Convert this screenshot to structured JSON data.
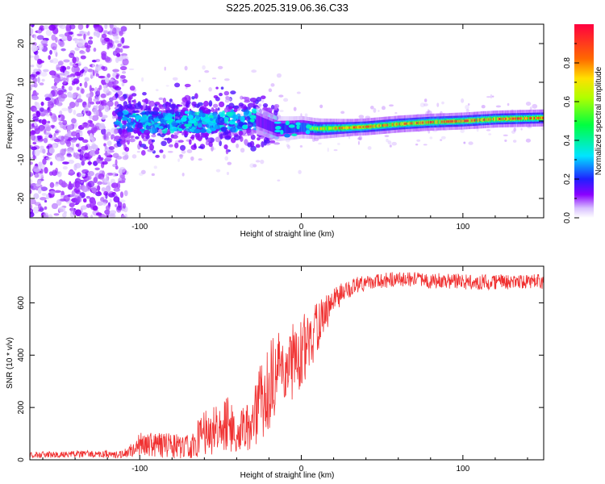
{
  "title": "S225.2025.319.06.36.C33",
  "chart_data": [
    {
      "type": "heatmap",
      "name": "spectrogram",
      "title": "S225.2025.319.06.36.C33",
      "xlabel": "Height of straight line (km)",
      "ylabel": "Frequency (Hz)",
      "xlim": [
        -168,
        150
      ],
      "ylim": [
        -25,
        25
      ],
      "xticks": [
        -100,
        0,
        100
      ],
      "yticks": [
        -20,
        -10,
        0,
        10,
        20
      ],
      "colorbar": {
        "label": "Normalized spectral amplitude",
        "range": [
          0,
          1
        ],
        "ticks": [
          "0.0",
          "0.2",
          "0.4",
          "0.6",
          "0.8"
        ],
        "colors": [
          "#ffffff",
          "#8a00ff",
          "#2020ff",
          "#00e5ff",
          "#00ff40",
          "#b0ff00",
          "#ffe000",
          "#ff6a00",
          "#ff0040"
        ]
      },
      "ridge_center_hz": [
        [
          -110,
          0.0
        ],
        [
          -80,
          -0.3
        ],
        [
          -50,
          0.0
        ],
        [
          -30,
          0.5
        ],
        [
          -15,
          -2.0
        ],
        [
          -5,
          -1.8
        ],
        [
          0,
          -1.6
        ],
        [
          10,
          -2.0
        ],
        [
          25,
          -1.8
        ],
        [
          40,
          -1.5
        ],
        [
          60,
          -0.8
        ],
        [
          80,
          -0.3
        ],
        [
          100,
          0.0
        ],
        [
          120,
          0.5
        ],
        [
          150,
          0.8
        ]
      ],
      "peak_amplitude": 0.95
    },
    {
      "type": "line",
      "name": "snr",
      "xlabel": "Height of straight line (km)",
      "ylabel": "SNR (10 * v/v)",
      "xlim": [
        -168,
        150
      ],
      "ylim": [
        0,
        740
      ],
      "xticks": [
        -100,
        0,
        100
      ],
      "yticks": [
        0,
        200,
        400,
        600
      ],
      "color": "#f03030",
      "envelope": {
        "x": [
          -168,
          -110,
          -100,
          -80,
          -70,
          -62,
          -55,
          -45,
          -40,
          -30,
          -22,
          -15,
          -5,
          5,
          15,
          25,
          40,
          60,
          100,
          150
        ],
        "mean": [
          20,
          22,
          60,
          55,
          50,
          90,
          130,
          140,
          90,
          150,
          260,
          330,
          380,
          450,
          560,
          640,
          680,
          690,
          680,
          680
        ],
        "noise": [
          12,
          15,
          45,
          50,
          45,
          80,
          110,
          110,
          80,
          110,
          180,
          170,
          150,
          120,
          70,
          40,
          30,
          30,
          30,
          30
        ]
      },
      "points": 1300
    }
  ]
}
